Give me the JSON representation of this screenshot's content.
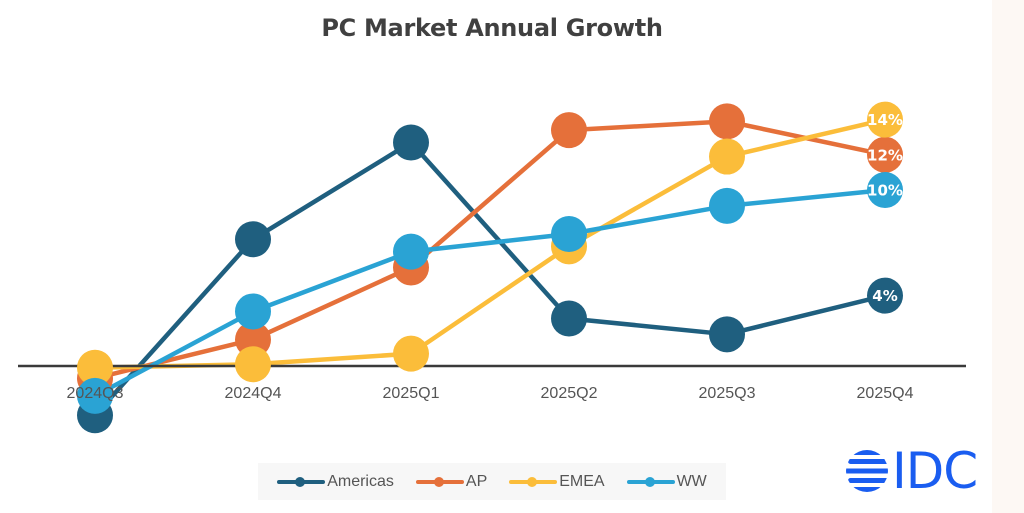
{
  "chart_data": {
    "type": "line",
    "title": "PC Market Annual Growth",
    "xlabel": "",
    "ylabel": "",
    "categories": [
      "2024Q3",
      "2024Q4",
      "2025Q1",
      "2025Q2",
      "2025Q3",
      "2025Q4"
    ],
    "ylim": [
      -3.5,
      14.5
    ],
    "grid": false,
    "legend_position": "bottom",
    "series": [
      {
        "name": "Americas",
        "color": "#1f5f7f",
        "values": [
          -2.8,
          7.2,
          12.7,
          2.7,
          1.8,
          4
        ],
        "end_label": "4%"
      },
      {
        "name": "AP",
        "color": "#e5703a",
        "values": [
          -0.7,
          1.5,
          5.6,
          13.4,
          13.9,
          12
        ],
        "end_label": "12%"
      },
      {
        "name": "EMEA",
        "color": "#fbbd3a",
        "values": [
          -0.1,
          0.1,
          0.7,
          6.8,
          11.9,
          14
        ],
        "end_label": "14%"
      },
      {
        "name": "WW",
        "color": "#2aa3d4",
        "values": [
          -1.7,
          3.1,
          6.5,
          7.5,
          9.1,
          10
        ],
        "end_label": "10%"
      }
    ]
  },
  "branding": {
    "logo_text": "IDC",
    "logo_color": "#1a5df0"
  }
}
